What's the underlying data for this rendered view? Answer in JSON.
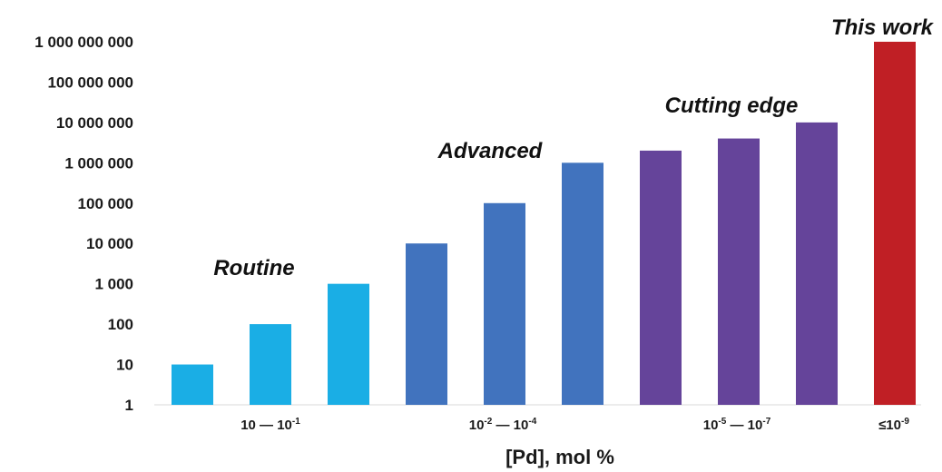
{
  "chart_data": {
    "type": "bar",
    "scale": "log10",
    "ylim": [
      1,
      1000000000
    ],
    "yticks": [
      {
        "value": 1,
        "label": "1"
      },
      {
        "value": 10,
        "label": "10"
      },
      {
        "value": 100,
        "label": "100"
      },
      {
        "value": 1000,
        "label": "1 000"
      },
      {
        "value": 10000,
        "label": "10 000"
      },
      {
        "value": 100000,
        "label": "100 000"
      },
      {
        "value": 1000000,
        "label": "1 000 000"
      },
      {
        "value": 10000000,
        "label": "10 000 000"
      },
      {
        "value": 100000000,
        "label": "100 000 000"
      },
      {
        "value": 1000000000,
        "label": "1 000 000 000"
      }
    ],
    "bars": [
      {
        "value": 10,
        "color": "#1aaee5"
      },
      {
        "value": 100,
        "color": "#1aaee5"
      },
      {
        "value": 1000,
        "color": "#1aaee5"
      },
      {
        "value": 10000,
        "color": "#4173be"
      },
      {
        "value": 100000,
        "color": "#4173be"
      },
      {
        "value": 1000000,
        "color": "#4173be"
      },
      {
        "value": 2000000,
        "color": "#65449a"
      },
      {
        "value": 4000000,
        "color": "#65449a"
      },
      {
        "value": 10000000,
        "color": "#65449a"
      },
      {
        "value": 1000000000,
        "color": "#c01f25"
      }
    ],
    "group_labels": [
      {
        "base": "10 — 10",
        "sup": "-1",
        "tail": ""
      },
      {
        "base": "10",
        "sup": "-2",
        "tail": " — 10",
        "sup2": "-4"
      },
      {
        "base": "10",
        "sup": "-5",
        "tail": " — 10",
        "sup2": "-7"
      },
      {
        "base": "≤10",
        "sup": "-9",
        "tail": ""
      }
    ],
    "xlabel": "[Pd], mol %",
    "annotations": [
      {
        "text": "Routine",
        "color": "#111111"
      },
      {
        "text": "Advanced",
        "color": "#111111"
      },
      {
        "text": "Cutting edge",
        "color": "#111111"
      },
      {
        "text": "This work",
        "color": "#e8262b"
      }
    ],
    "grid": false
  }
}
